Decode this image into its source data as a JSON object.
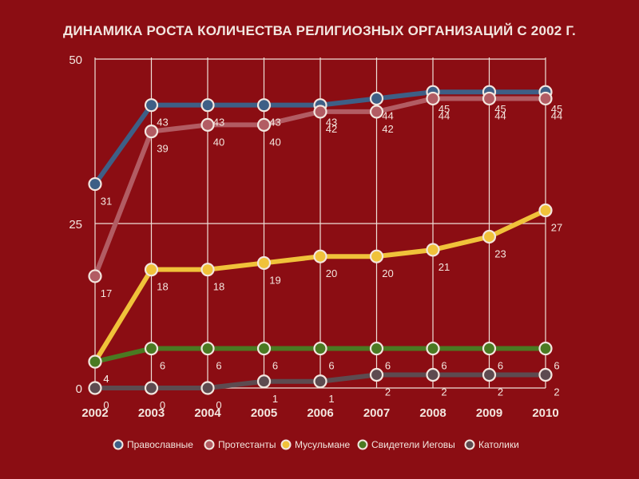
{
  "chart_data": {
    "type": "line",
    "title": "ДИНАМИКА РОСТА КОЛИЧЕСТВА РЕЛИГИОЗНЫХ ОРГАНИЗАЦИЙ С 2002 Г.",
    "xlabel": "",
    "ylabel": "",
    "categories": [
      "2002",
      "2003",
      "2004",
      "2005",
      "2006",
      "2007",
      "2008",
      "2009",
      "2010"
    ],
    "ylim": [
      0,
      50
    ],
    "yticks": [
      0,
      25,
      50
    ],
    "grid": true,
    "legend_position": "bottom",
    "series": [
      {
        "name": "Православные",
        "color": "#3e5f86",
        "values": [
          31,
          43,
          43,
          43,
          43,
          44,
          45,
          45,
          45
        ]
      },
      {
        "name": "Протестанты",
        "color": "#b25c63",
        "values": [
          17,
          39,
          40,
          40,
          42,
          42,
          44,
          44,
          44
        ]
      },
      {
        "name": "Мусульмане",
        "color": "#f0c23a",
        "values": [
          4,
          18,
          18,
          19,
          20,
          20,
          21,
          23,
          27
        ]
      },
      {
        "name": "Свидетели Иеговы",
        "color": "#4a7a22",
        "values": [
          4,
          6,
          6,
          6,
          6,
          6,
          6,
          6,
          6
        ]
      },
      {
        "name": "Католики",
        "color": "#5d4b50",
        "values": [
          0,
          0,
          0,
          1,
          1,
          2,
          2,
          2,
          2
        ]
      }
    ]
  }
}
